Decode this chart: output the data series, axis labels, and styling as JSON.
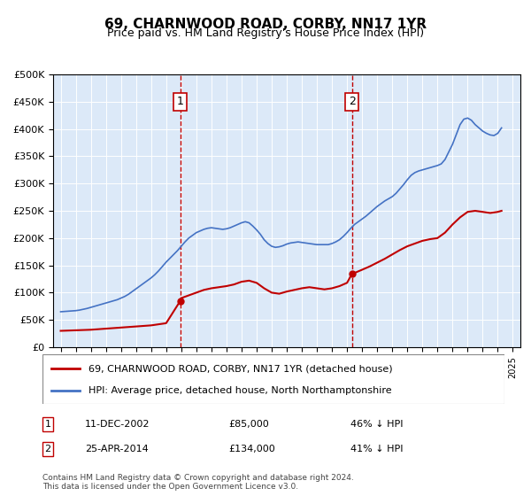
{
  "title": "69, CHARNWOOD ROAD, CORBY, NN17 1YR",
  "subtitle": "Price paid vs. HM Land Registry's House Price Index (HPI)",
  "hpi_label": "HPI: Average price, detached house, North Northamptonshire",
  "price_label": "69, CHARNWOOD ROAD, CORBY, NN17 1YR (detached house)",
  "footnote": "Contains HM Land Registry data © Crown copyright and database right 2024.\nThis data is licensed under the Open Government Licence v3.0.",
  "background_color": "#dce9f8",
  "plot_bg": "#dce9f8",
  "sale1_date": "11-DEC-2002",
  "sale1_price": 85000,
  "sale1_pct": "46% ↓ HPI",
  "sale1_x": 2002.94,
  "sale2_date": "25-APR-2014",
  "sale2_price": 134000,
  "sale2_pct": "41% ↓ HPI",
  "sale2_x": 2014.32,
  "ylim": [
    0,
    500000
  ],
  "xlim_left": 1994.5,
  "xlim_right": 2025.5,
  "hpi_color": "#4472c4",
  "price_color": "#c00000",
  "vline_color": "#c00000",
  "hpi_x": [
    1995,
    1995.25,
    1995.5,
    1995.75,
    1996,
    1996.25,
    1996.5,
    1996.75,
    1997,
    1997.25,
    1997.5,
    1997.75,
    1998,
    1998.25,
    1998.5,
    1998.75,
    1999,
    1999.25,
    1999.5,
    1999.75,
    2000,
    2000.25,
    2000.5,
    2000.75,
    2001,
    2001.25,
    2001.5,
    2001.75,
    2002,
    2002.25,
    2002.5,
    2002.75,
    2003,
    2003.25,
    2003.5,
    2003.75,
    2004,
    2004.25,
    2004.5,
    2004.75,
    2005,
    2005.25,
    2005.5,
    2005.75,
    2006,
    2006.25,
    2006.5,
    2006.75,
    2007,
    2007.25,
    2007.5,
    2007.75,
    2008,
    2008.25,
    2008.5,
    2008.75,
    2009,
    2009.25,
    2009.5,
    2009.75,
    2010,
    2010.25,
    2010.5,
    2010.75,
    2011,
    2011.25,
    2011.5,
    2011.75,
    2012,
    2012.25,
    2012.5,
    2012.75,
    2013,
    2013.25,
    2013.5,
    2013.75,
    2014,
    2014.25,
    2014.5,
    2014.75,
    2015,
    2015.25,
    2015.5,
    2015.75,
    2016,
    2016.25,
    2016.5,
    2016.75,
    2017,
    2017.25,
    2017.5,
    2017.75,
    2018,
    2018.25,
    2018.5,
    2018.75,
    2019,
    2019.25,
    2019.5,
    2019.75,
    2020,
    2020.25,
    2020.5,
    2020.75,
    2021,
    2021.25,
    2021.5,
    2021.75,
    2022,
    2022.25,
    2022.5,
    2022.75,
    2023,
    2023.25,
    2023.5,
    2023.75,
    2024,
    2024.25
  ],
  "hpi_y": [
    65000,
    65500,
    66000,
    66500,
    67000,
    68000,
    69500,
    71000,
    73000,
    75000,
    77000,
    79000,
    81000,
    83000,
    85000,
    87000,
    90000,
    93000,
    97000,
    102000,
    107000,
    112000,
    117000,
    122000,
    127000,
    133000,
    140000,
    148000,
    156000,
    163000,
    170000,
    177000,
    185000,
    193000,
    200000,
    205000,
    210000,
    213000,
    216000,
    218000,
    219000,
    218000,
    217000,
    216000,
    217000,
    219000,
    222000,
    225000,
    228000,
    230000,
    228000,
    222000,
    215000,
    207000,
    197000,
    190000,
    185000,
    183000,
    184000,
    186000,
    189000,
    191000,
    192000,
    193000,
    192000,
    191000,
    190000,
    189000,
    188000,
    188000,
    188000,
    188000,
    190000,
    193000,
    197000,
    203000,
    210000,
    218000,
    225000,
    230000,
    235000,
    240000,
    246000,
    252000,
    258000,
    263000,
    268000,
    272000,
    276000,
    282000,
    290000,
    298000,
    307000,
    315000,
    320000,
    323000,
    325000,
    327000,
    329000,
    331000,
    333000,
    336000,
    344000,
    358000,
    372000,
    390000,
    408000,
    418000,
    420000,
    416000,
    408000,
    402000,
    396000,
    392000,
    389000,
    388000,
    392000,
    402000
  ],
  "price_x": [
    1995,
    1995.5,
    1996,
    1996.5,
    1997,
    1997.5,
    1998,
    1998.5,
    1999,
    1999.5,
    2000,
    2000.5,
    2001,
    2001.5,
    2002,
    2002.94,
    2003,
    2003.5,
    2004,
    2004.5,
    2005,
    2005.5,
    2006,
    2006.5,
    2007,
    2007.5,
    2008,
    2008.5,
    2009,
    2009.5,
    2010,
    2010.5,
    2011,
    2011.5,
    2012,
    2012.5,
    2013,
    2013.5,
    2014,
    2014.32,
    2015,
    2015.5,
    2016,
    2016.5,
    2017,
    2017.5,
    2018,
    2018.5,
    2019,
    2019.5,
    2020,
    2020.5,
    2021,
    2021.5,
    2022,
    2022.5,
    2023,
    2023.5,
    2024,
    2024.25
  ],
  "price_y": [
    30000,
    30500,
    31000,
    31500,
    32000,
    33000,
    34000,
    35000,
    36000,
    37000,
    38000,
    39000,
    40000,
    42000,
    44000,
    85000,
    90000,
    95000,
    100000,
    105000,
    108000,
    110000,
    112000,
    115000,
    120000,
    122000,
    118000,
    108000,
    100000,
    98000,
    102000,
    105000,
    108000,
    110000,
    108000,
    106000,
    108000,
    112000,
    118000,
    134000,
    142000,
    148000,
    155000,
    162000,
    170000,
    178000,
    185000,
    190000,
    195000,
    198000,
    200000,
    210000,
    225000,
    238000,
    248000,
    250000,
    248000,
    246000,
    248000,
    250000
  ]
}
